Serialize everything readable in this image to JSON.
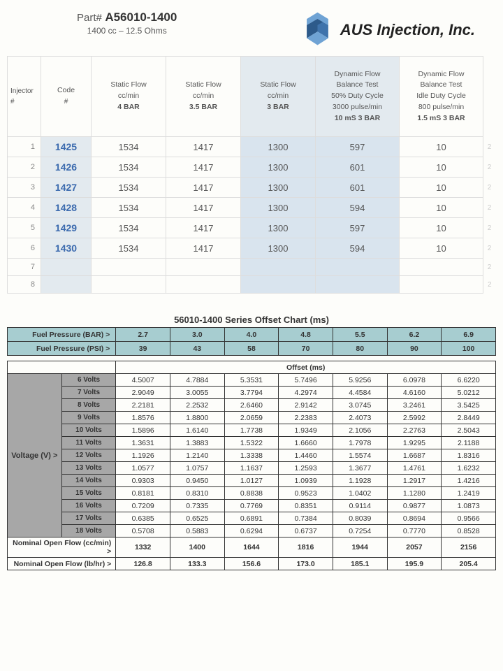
{
  "header": {
    "part_label": "Part#",
    "part_number": "A56010-1400",
    "spec": "1400 cc – 12.5 Ohms",
    "brand": "AUS Injection, Inc.",
    "logo_colors": {
      "dark": "#2d5a8a",
      "light": "#6fa3d4"
    }
  },
  "injector_table": {
    "columns": [
      {
        "label": "Injector #",
        "sub": ""
      },
      {
        "label": "Code",
        "sub": "#"
      },
      {
        "label": "Static Flow",
        "sub": "cc/min",
        "bold": "4 BAR"
      },
      {
        "label": "Static Flow",
        "sub": "cc/min",
        "bold": "3.5 BAR"
      },
      {
        "label": "Static Flow",
        "sub": "cc/min",
        "bold": "3 BAR"
      },
      {
        "label": "Dynamic Flow\nBalance Test",
        "sub": "50% Duty Cycle\n3000 pulse/min",
        "bold": "10 mS  3 BAR"
      },
      {
        "label": "Dynamic Flow\nBalance Test",
        "sub": "Idle Duty Cycle\n800 pulse/min",
        "bold": "1.5 mS 3 BAR"
      }
    ],
    "shade_cols": [
      4,
      5
    ],
    "rows": [
      {
        "n": 1,
        "code": "1425",
        "v": [
          "1534",
          "1417",
          "1300",
          "597",
          "10"
        ],
        "t": "2"
      },
      {
        "n": 2,
        "code": "1426",
        "v": [
          "1534",
          "1417",
          "1300",
          "601",
          "10"
        ],
        "t": "2"
      },
      {
        "n": 3,
        "code": "1427",
        "v": [
          "1534",
          "1417",
          "1300",
          "601",
          "10"
        ],
        "t": "2"
      },
      {
        "n": 4,
        "code": "1428",
        "v": [
          "1534",
          "1417",
          "1300",
          "594",
          "10"
        ],
        "t": "2"
      },
      {
        "n": 5,
        "code": "1429",
        "v": [
          "1534",
          "1417",
          "1300",
          "597",
          "10"
        ],
        "t": "2"
      },
      {
        "n": 6,
        "code": "1430",
        "v": [
          "1534",
          "1417",
          "1300",
          "594",
          "10"
        ],
        "t": "2"
      },
      {
        "n": 7,
        "code": "",
        "v": [
          "",
          "",
          "",
          "",
          ""
        ],
        "t": "2"
      },
      {
        "n": 8,
        "code": "",
        "v": [
          "",
          "",
          "",
          "",
          ""
        ],
        "t": "2"
      }
    ]
  },
  "offset_chart": {
    "title": "56010-1400 Series Offset Chart (ms)",
    "bar_label": "Fuel Pressure (BAR) >",
    "psi_label": "Fuel Pressure (PSI) >",
    "bar_values": [
      "2.7",
      "3.0",
      "4.0",
      "4.8",
      "5.5",
      "6.2",
      "6.9"
    ],
    "psi_values": [
      "39",
      "43",
      "58",
      "70",
      "80",
      "90",
      "100"
    ],
    "offset_header": "Offset (ms)",
    "voltage_label": "Voltage (V) >",
    "voltages": [
      "6 Volts",
      "7 Volts",
      "8 Volts",
      "9 Volts",
      "10 Volts",
      "11 Volts",
      "12 Volts",
      "13 Volts",
      "14 Volts",
      "15 Volts",
      "16 Volts",
      "17 Volts",
      "18 Volts"
    ],
    "data": [
      [
        "4.5007",
        "4.7884",
        "5.3531",
        "5.7496",
        "5.9256",
        "6.0978",
        "6.6220"
      ],
      [
        "2.9049",
        "3.0055",
        "3.7794",
        "4.2974",
        "4.4584",
        "4.6160",
        "5.0212"
      ],
      [
        "2.2181",
        "2.2532",
        "2.6460",
        "2.9142",
        "3.0745",
        "3.2461",
        "3.5425"
      ],
      [
        "1.8576",
        "1.8800",
        "2.0659",
        "2.2383",
        "2.4073",
        "2.5992",
        "2.8449"
      ],
      [
        "1.5896",
        "1.6140",
        "1.7738",
        "1.9349",
        "2.1056",
        "2.2763",
        "2.5043"
      ],
      [
        "1.3631",
        "1.3883",
        "1.5322",
        "1.6660",
        "1.7978",
        "1.9295",
        "2.1188"
      ],
      [
        "1.1926",
        "1.2140",
        "1.3338",
        "1.4460",
        "1.5574",
        "1.6687",
        "1.8316"
      ],
      [
        "1.0577",
        "1.0757",
        "1.1637",
        "1.2593",
        "1.3677",
        "1.4761",
        "1.6232"
      ],
      [
        "0.9303",
        "0.9450",
        "1.0127",
        "1.0939",
        "1.1928",
        "1.2917",
        "1.4216"
      ],
      [
        "0.8181",
        "0.8310",
        "0.8838",
        "0.9523",
        "1.0402",
        "1.1280",
        "1.2419"
      ],
      [
        "0.7209",
        "0.7335",
        "0.7769",
        "0.8351",
        "0.9114",
        "0.9877",
        "1.0873"
      ],
      [
        "0.6385",
        "0.6525",
        "0.6891",
        "0.7384",
        "0.8039",
        "0.8694",
        "0.9566"
      ],
      [
        "0.5708",
        "0.5883",
        "0.6294",
        "0.6737",
        "0.7254",
        "0.7770",
        "0.8528"
      ]
    ],
    "footer": [
      {
        "label": "Nominal Open Flow (cc/min) >",
        "vals": [
          "1332",
          "1400",
          "1644",
          "1816",
          "1944",
          "2057",
          "2156"
        ]
      },
      {
        "label": "Nominal Open Flow (lb/hr) >",
        "vals": [
          "126.8",
          "133.3",
          "156.6",
          "173.0",
          "185.1",
          "195.9",
          "205.4"
        ]
      }
    ]
  }
}
